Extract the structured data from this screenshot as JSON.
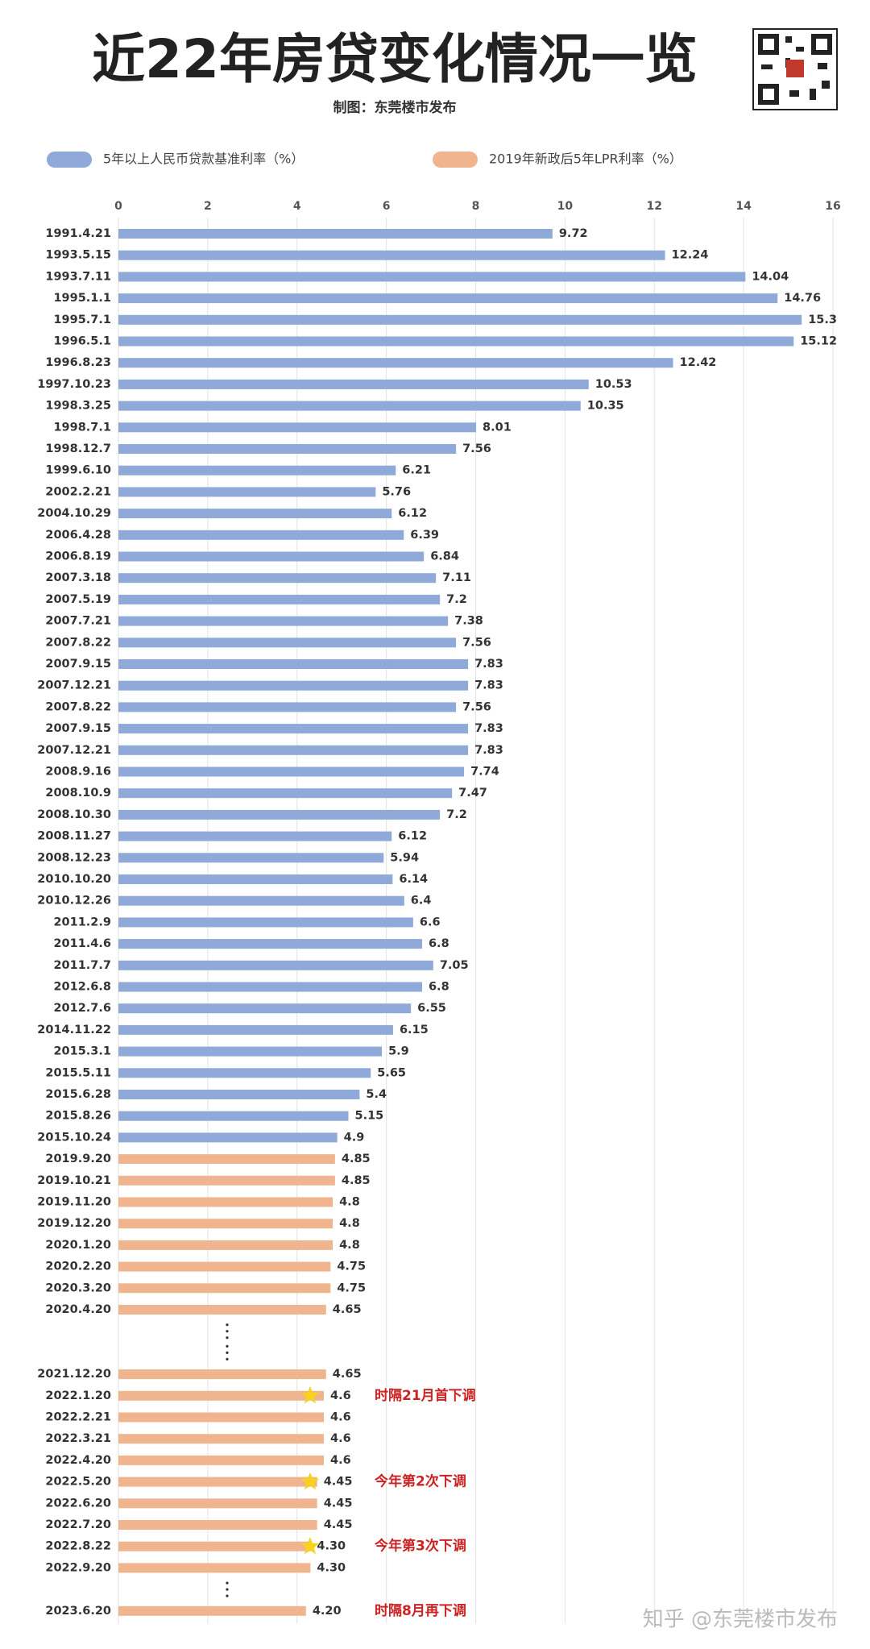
{
  "title": "近22年房贷变化情况一览",
  "subtitle": "制图：东莞楼市发布",
  "watermark": "知乎 @东莞楼市发布",
  "chart_data": {
    "type": "hbar",
    "grid": true,
    "xlim": [
      0,
      16
    ],
    "xticks": [
      0,
      2,
      4,
      6,
      8,
      10,
      12,
      14,
      16
    ],
    "categories": [
      "1991.4.21",
      "1993.5.15",
      "1993.7.11",
      "1995.1.1",
      "1995.7.1",
      "1996.5.1",
      "1996.8.23",
      "1997.10.23",
      "1998.3.25",
      "1998.7.1",
      "1998.12.7",
      "1999.6.10",
      "2002.2.21",
      "2004.10.29",
      "2006.4.28",
      "2006.8.19",
      "2007.3.18",
      "2007.5.19",
      "2007.7.21",
      "2007.8.22",
      "2007.9.15",
      "2007.12.21",
      "2007.8.22",
      "2007.9.15",
      "2007.12.21",
      "2008.9.16",
      "2008.10.9",
      "2008.10.30",
      "2008.11.27",
      "2008.12.23",
      "2010.10.20",
      "2010.12.26",
      "2011.2.9",
      "2011.4.6",
      "2011.7.7",
      "2012.6.8",
      "2012.7.6",
      "2014.11.22",
      "2015.3.1",
      "2015.5.11",
      "2015.6.28",
      "2015.8.26",
      "2015.10.24",
      "2019.9.20",
      "2019.10.21",
      "2019.11.20",
      "2019.12.20",
      "2020.1.20",
      "2020.2.20",
      "2020.3.20",
      "2020.4.20",
      null,
      null,
      "2021.12.20",
      "2022.1.20",
      "2022.2.21",
      "2022.3.21",
      "2022.4.20",
      "2022.5.20",
      "2022.6.20",
      "2022.7.20",
      "2022.8.22",
      "2022.9.20",
      null,
      "2023.6.20"
    ],
    "series": [
      {
        "name": "5年以上人民币贷款基准利率（%）",
        "color": "#8fa9d9",
        "values": [
          9.72,
          12.24,
          14.04,
          14.76,
          15.3,
          15.12,
          12.42,
          10.53,
          10.35,
          8.01,
          7.56,
          6.21,
          5.76,
          6.12,
          6.39,
          6.84,
          7.11,
          7.2,
          7.38,
          7.56,
          7.83,
          7.83,
          7.56,
          7.83,
          7.83,
          7.74,
          7.47,
          7.2,
          6.12,
          5.94,
          6.14,
          6.4,
          6.6,
          6.8,
          7.05,
          6.8,
          6.55,
          6.15,
          5.9,
          5.65,
          5.4,
          5.15,
          4.9,
          null,
          null,
          null,
          null,
          null,
          null,
          null,
          null,
          null,
          null,
          null,
          null,
          null,
          null,
          null,
          null,
          null,
          null,
          null,
          null,
          null,
          null
        ]
      },
      {
        "name": "2019年新政后5年LPR利率（%）",
        "color": "#f0b58e",
        "values": [
          null,
          null,
          null,
          null,
          null,
          null,
          null,
          null,
          null,
          null,
          null,
          null,
          null,
          null,
          null,
          null,
          null,
          null,
          null,
          null,
          null,
          null,
          null,
          null,
          null,
          null,
          null,
          null,
          null,
          null,
          null,
          null,
          null,
          null,
          null,
          null,
          null,
          null,
          null,
          null,
          null,
          null,
          null,
          4.85,
          4.85,
          4.8,
          4.8,
          4.8,
          4.75,
          4.75,
          4.65,
          null,
          null,
          4.65,
          4.6,
          4.6,
          4.6,
          4.6,
          4.45,
          4.45,
          4.45,
          4.3,
          4.3,
          null,
          4.2
        ],
        "value_labels": [
          null,
          null,
          null,
          null,
          null,
          null,
          null,
          null,
          null,
          null,
          null,
          null,
          null,
          null,
          null,
          null,
          null,
          null,
          null,
          null,
          null,
          null,
          null,
          null,
          null,
          null,
          null,
          null,
          null,
          null,
          null,
          null,
          null,
          null,
          null,
          null,
          null,
          null,
          null,
          null,
          null,
          null,
          null,
          null,
          null,
          null,
          null,
          null,
          null,
          null,
          null,
          null,
          null,
          null,
          null,
          null,
          null,
          null,
          null,
          null,
          null,
          "4.30",
          "4.30",
          null,
          "4.20"
        ]
      }
    ],
    "annotations": [
      {
        "text": "时隔21月首下调",
        "at": "2022.1.20",
        "star": true
      },
      {
        "text": "今年第2次下调",
        "at": "2022.5.20",
        "star": true
      },
      {
        "text": "今年第3次下调",
        "at": "2022.8.22",
        "star": true
      },
      {
        "text": "时隔8月再下调",
        "at": "2023.6.20",
        "star": false
      }
    ]
  }
}
